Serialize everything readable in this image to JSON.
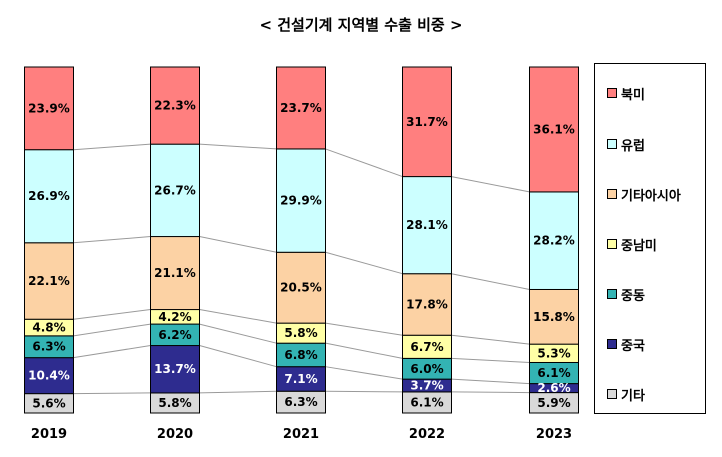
{
  "chart_data": {
    "type": "bar",
    "stacked": true,
    "normalized_percent": true,
    "title": "< 건설기계 지역별 수출 비중 >",
    "categories": [
      "2019",
      "2020",
      "2021",
      "2022",
      "2023"
    ],
    "series": [
      {
        "name": "기타",
        "color": "#d9d9d9",
        "label_color": "#000000",
        "values": [
          5.6,
          5.8,
          6.3,
          6.1,
          5.9
        ]
      },
      {
        "name": "중국",
        "color": "#2e2c8f",
        "label_color": "#ffffff",
        "values": [
          10.4,
          13.7,
          7.1,
          3.7,
          2.6
        ]
      },
      {
        "name": "중동",
        "color": "#33b3b3",
        "label_color": "#000000",
        "values": [
          6.3,
          6.2,
          6.8,
          6.0,
          6.1
        ]
      },
      {
        "name": "중남미",
        "color": "#ffffa6",
        "label_color": "#000000",
        "values": [
          4.8,
          4.2,
          5.8,
          6.7,
          5.3
        ]
      },
      {
        "name": "기타아시아",
        "color": "#fcd2a4",
        "label_color": "#000000",
        "values": [
          22.1,
          21.1,
          20.5,
          17.8,
          15.8
        ]
      },
      {
        "name": "유럽",
        "color": "#ccffff",
        "label_color": "#000000",
        "values": [
          26.9,
          26.7,
          29.9,
          28.1,
          28.2
        ]
      },
      {
        "name": "북미",
        "color": "#ff7f7f",
        "label_color": "#000000",
        "values": [
          23.9,
          22.3,
          23.7,
          31.7,
          36.1
        ]
      }
    ],
    "legend_position": "right",
    "legend_order": [
      "북미",
      "유럽",
      "기타아시아",
      "중남미",
      "중동",
      "중국",
      "기타"
    ],
    "series_lines": true,
    "grid": false
  }
}
